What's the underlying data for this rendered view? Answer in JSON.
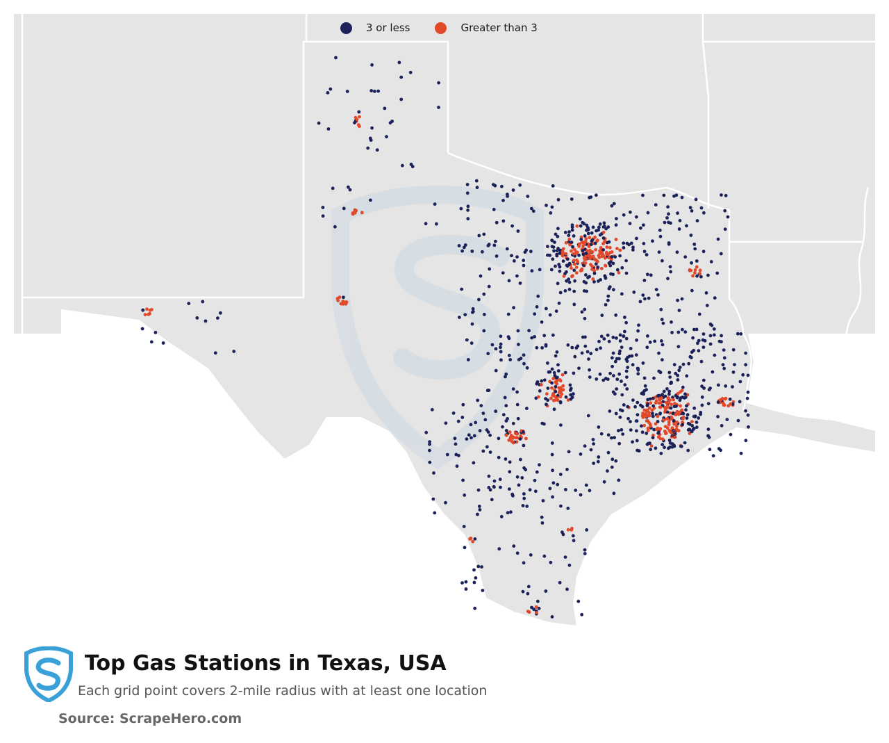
{
  "legend": {
    "items": [
      {
        "label": "3 or less",
        "color": "#1b2259"
      },
      {
        "label": "Greater than 3",
        "color": "#e2492a"
      }
    ]
  },
  "title": "Top Gas Stations in Texas, USA",
  "subtitle": "Each grid point covers 2-mile radius with at least one location",
  "source": "Source: ScrapeHero.com",
  "colors": {
    "land": "#e5e5e5",
    "state_border": "#ffffff",
    "low": "#1b2259",
    "high": "#e2492a",
    "logo": "#3aa0d8",
    "watermark": "#cdd9e2"
  },
  "logo_icon": "scrapehero-shield-s-icon"
}
